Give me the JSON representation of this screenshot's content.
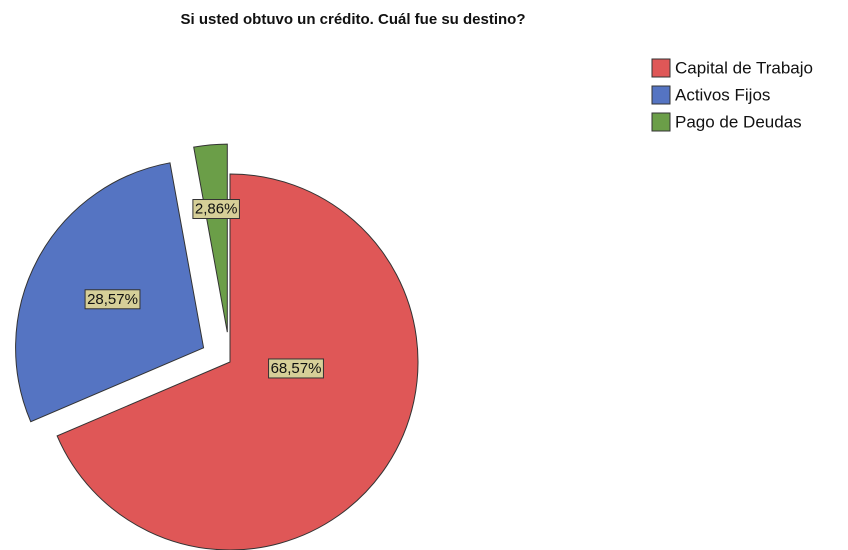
{
  "chart_data": {
    "type": "pie",
    "title": "Si usted obtuvo un crédito. Cuál fue su destino?",
    "categories": [
      "Capital de Trabajo",
      "Activos Fijos",
      "Pago de Deudas"
    ],
    "values": [
      68.57,
      28.57,
      2.86
    ],
    "value_labels": [
      "68,57%",
      "28,57%",
      "2,86%"
    ],
    "colors": [
      "#df5757",
      "#5574c2",
      "#6b9e48"
    ],
    "legend": "right"
  }
}
